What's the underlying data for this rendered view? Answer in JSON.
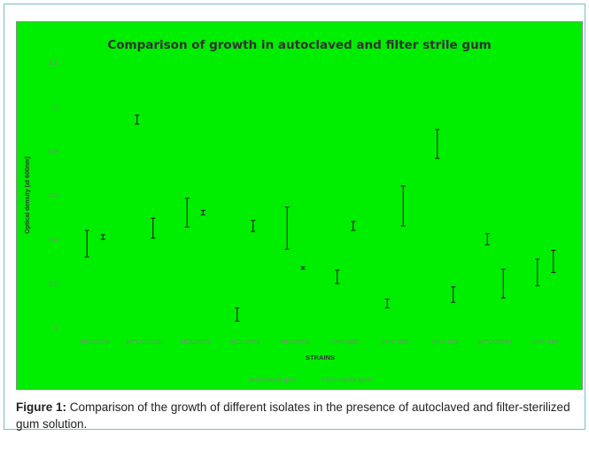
{
  "colors": {
    "plot_background": "#00ee00",
    "frame_border": "#6fc3c8",
    "chart_border": "#8a8a8a",
    "text_dark": "#333333",
    "text_light": "#7a8a7a",
    "error_bar": "#222222"
  },
  "chart_data": {
    "type": "scatter",
    "title": "Comparison of growth in autoclaved and filter strile gum",
    "xlabel": "STRAINS",
    "ylabel": "Optical density (at 600nm)",
    "ylim": [
      0,
      1.2
    ],
    "yticks": [
      "0",
      "0.2",
      "0.4",
      "0.6",
      "0.8",
      "1",
      "1.2"
    ],
    "grid": false,
    "legend_position": "bottom",
    "categories": [
      "MCC2138",
      "MTCC11281",
      "MCC2071",
      "MCC2059",
      "MCC0008",
      "SRC 005",
      "SRC 007",
      "SRC 001",
      "MTCC5564",
      "SRC 004"
    ],
    "series": [
      {
        "name": "Autoclaved gum",
        "mean": [
          0.38,
          0.94,
          0.52,
          0.06,
          0.45,
          0.23,
          0.11,
          0.83,
          0.4,
          0.25
        ],
        "err": [
          0.06,
          0.02,
          0.065,
          0.03,
          0.095,
          0.03,
          0.02,
          0.065,
          0.025,
          0.06
        ]
      },
      {
        "name": "Filter sterile gum",
        "mean": [
          0.41,
          0.45,
          0.52,
          0.46,
          0.27,
          0.46,
          0.55,
          0.15,
          0.2,
          0.3
        ],
        "err": [
          0.01,
          0.045,
          0.01,
          0.025,
          0.005,
          0.02,
          0.09,
          0.035,
          0.065,
          0.05
        ]
      }
    ]
  },
  "caption": {
    "label": "Figure 1:",
    "text": " Comparison of the growth of different isolates in the presence of autoclaved and filter-sterilized gum solution."
  }
}
